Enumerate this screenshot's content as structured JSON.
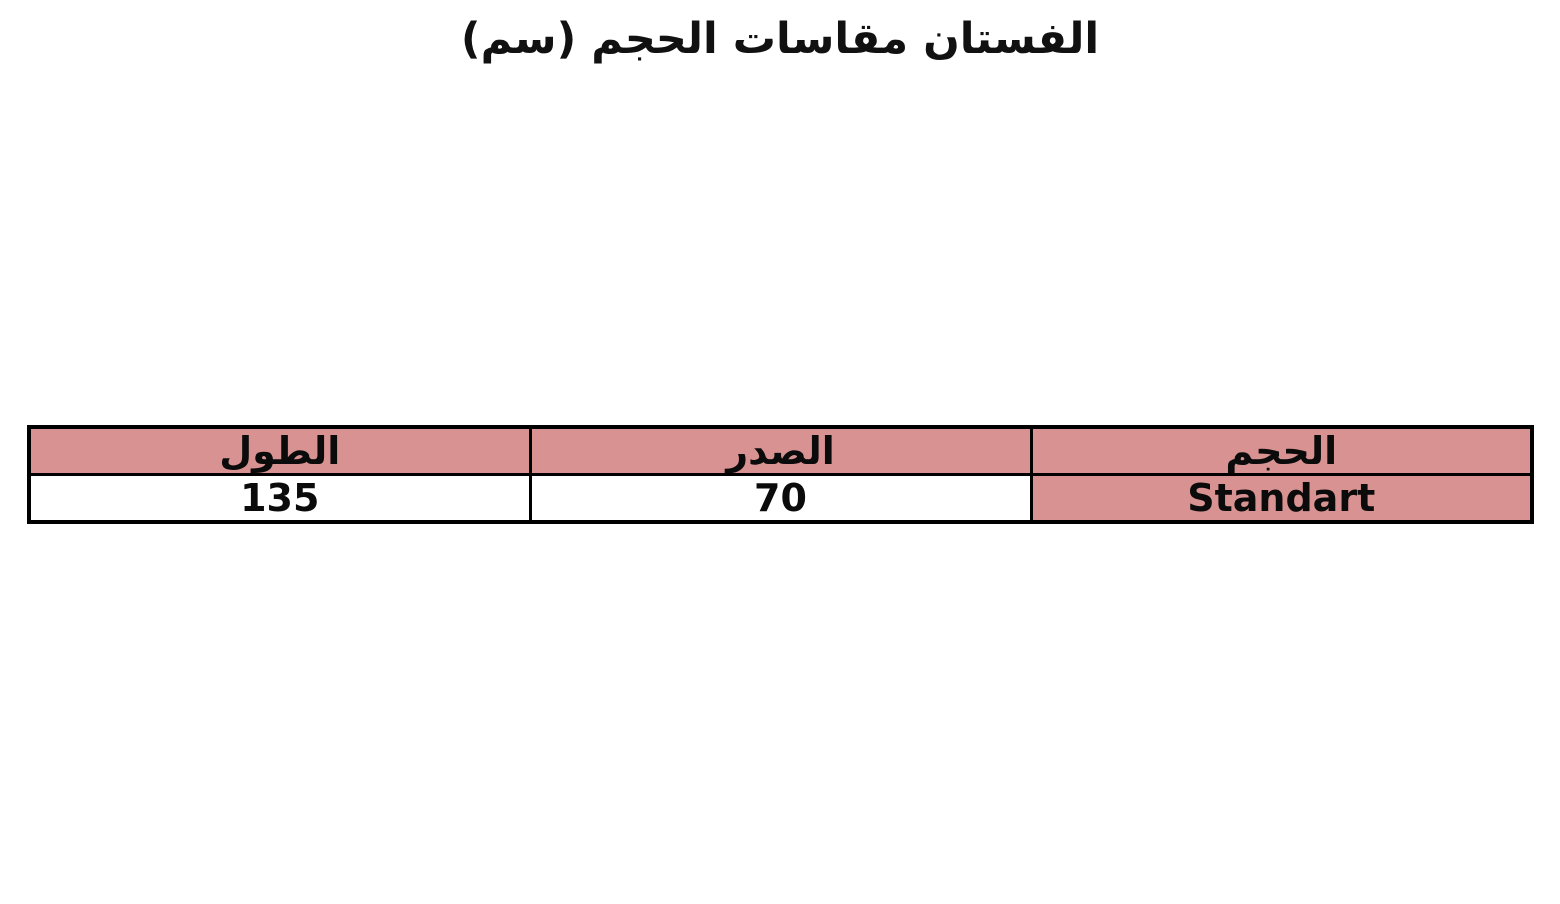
{
  "title": "الفستان مقاسات الحجم (سم)",
  "chart_data": {
    "type": "table",
    "title": "الفستان مقاسات الحجم (سم)",
    "direction": "rtl",
    "columns": [
      "الحجم",
      "الصدر",
      "الطول"
    ],
    "rows": [
      [
        "Standart",
        "70",
        "135"
      ]
    ],
    "header_fill": "#D99292",
    "border_color": "#000000",
    "background": "#FFFFFF",
    "highlighted_cells": [
      {
        "row": 0,
        "col": 0,
        "value": "Standart",
        "fill": "#D99292"
      }
    ],
    "layout_hints": {
      "title_position": "top-center",
      "grid": "all-borders",
      "first_column_side": "right"
    }
  }
}
